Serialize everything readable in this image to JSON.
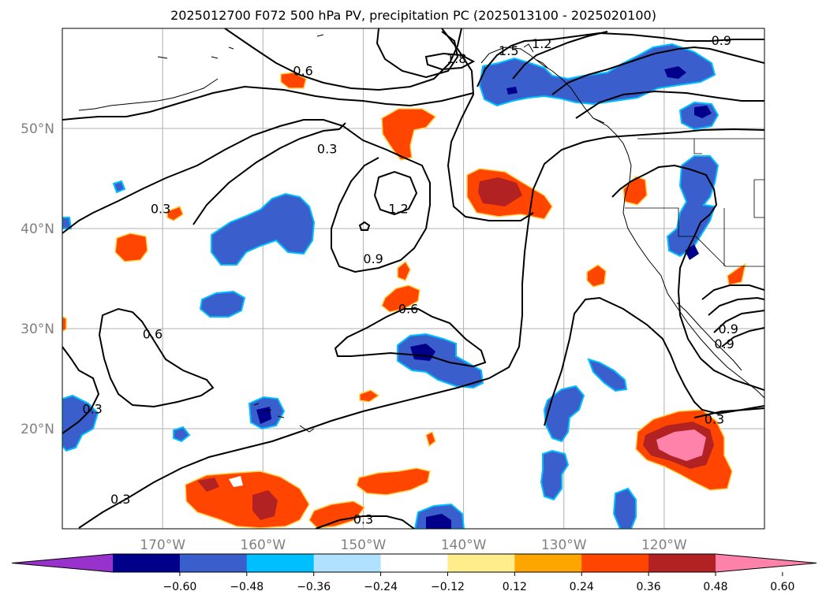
{
  "chart_data": {
    "type": "contour",
    "title": "2025012700 F072 500 hPa PV, precipitation PC (2025013100 - 2025020100)",
    "x_ticks": [
      {
        "lon": -170,
        "label": "170°W"
      },
      {
        "lon": -160,
        "label": "160°W"
      },
      {
        "lon": -150,
        "label": "150°W"
      },
      {
        "lon": -140,
        "label": "140°W"
      },
      {
        "lon": -130,
        "label": "130°W"
      },
      {
        "lon": -120,
        "label": "120°W"
      }
    ],
    "y_ticks": [
      {
        "lat": 50,
        "label": "50°N"
      },
      {
        "lat": 40,
        "label": "40°N"
      },
      {
        "lat": 30,
        "label": "30°N"
      },
      {
        "lat": 20,
        "label": "20°N"
      }
    ],
    "xlim": [
      -180,
      -110
    ],
    "ylim": [
      10,
      60
    ],
    "grid": true,
    "colorbar": {
      "colors": [
        "#9932CC",
        "#00008B",
        "#3A5FCD",
        "#00BFFF",
        "#B0E2FF",
        "#FFFFFF",
        "#FFEC8B",
        "#FFA500",
        "#FF4500",
        "#B22222",
        "#FF82AB"
      ],
      "labels": [
        "−0.60",
        "−0.48",
        "−0.36",
        "−0.24",
        "−0.12",
        "0.12",
        "0.24",
        "0.36",
        "0.48",
        "0.60"
      ]
    },
    "contour_labels": [
      {
        "text": "0.3",
        "lon": -170.2,
        "lat": 42.0
      },
      {
        "text": "0.3",
        "lon": -153.6,
        "lat": 48.0
      },
      {
        "text": "0.6",
        "lon": -156.0,
        "lat": 55.8
      },
      {
        "text": "1.2",
        "lon": -146.5,
        "lat": 42.0
      },
      {
        "text": "0.9",
        "lon": -149.0,
        "lat": 37.0
      },
      {
        "text": "0.6",
        "lon": -145.5,
        "lat": 32.0
      },
      {
        "text": "0.6",
        "lon": -171.0,
        "lat": 29.5
      },
      {
        "text": "0.3",
        "lon": -177.0,
        "lat": 22.0
      },
      {
        "text": "0.3",
        "lon": -174.2,
        "lat": 13.0
      },
      {
        "text": "0.3",
        "lon": -150.0,
        "lat": 11.0
      },
      {
        "text": "1.8",
        "lon": -140.7,
        "lat": 57.0
      },
      {
        "text": "1.5",
        "lon": -135.5,
        "lat": 57.8
      },
      {
        "text": "1.2",
        "lon": -132.2,
        "lat": 58.5
      },
      {
        "text": "0.9",
        "lon": -114.3,
        "lat": 58.8
      },
      {
        "text": "0.3",
        "lon": -115.0,
        "lat": 21.0
      },
      {
        "text": "0.9",
        "lon": -113.6,
        "lat": 30.0
      },
      {
        "text": "0.9",
        "lon": -114.0,
        "lat": 28.5
      }
    ]
  }
}
